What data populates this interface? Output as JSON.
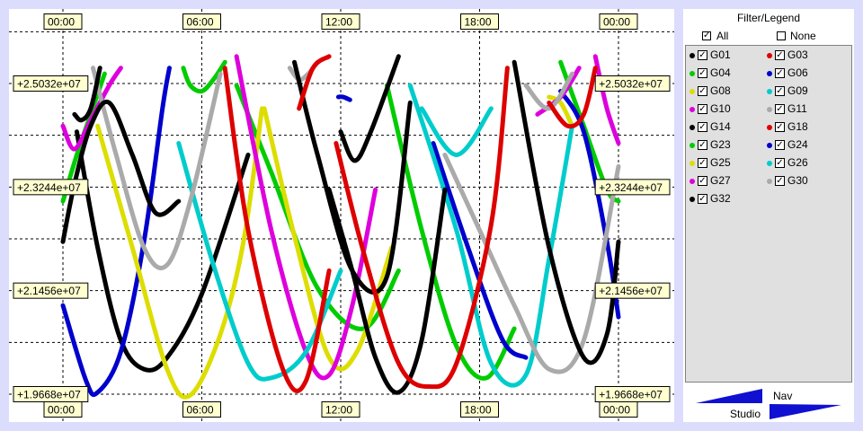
{
  "chart_data": {
    "type": "line",
    "x_tick_labels": [
      "00:00",
      "06:00",
      "12:00",
      "18:00",
      "00:00"
    ],
    "x_range_hours": [
      0,
      24
    ],
    "y_tick_labels": [
      "+2.5032e+07",
      "+2.3244e+07",
      "+2.1456e+07",
      "+1.9668e+07"
    ],
    "ylim": [
      19668000,
      25032000
    ],
    "grid": true,
    "series": [
      {
        "name": "G01",
        "color": "#000000",
        "x": [
          0.6,
          1.5,
          2.5,
          3.5,
          4.5,
          6.0,
          8.0
        ],
        "y": [
          24200000,
          22200000,
          20600000,
          20100000,
          20300000,
          21400000,
          23800000
        ]
      },
      {
        "name": "G04",
        "color": "#00cc00",
        "x": [
          0.0,
          0.6,
          1.2,
          1.8
        ],
        "y": [
          23000000,
          23800000,
          24500000,
          25200000
        ]
      },
      {
        "name": "G04",
        "color": "#00cc00",
        "x": [
          7.5,
          9.0,
          11.0,
          13.0,
          14.5
        ],
        "y": [
          25000000,
          23500000,
          21500000,
          20800000,
          21800000
        ]
      },
      {
        "name": "G23",
        "color": "#00cc00",
        "x": [
          5.2,
          5.5,
          6.0,
          6.5,
          7.0
        ],
        "y": [
          25300000,
          25000000,
          24900000,
          25100000,
          25400000
        ]
      },
      {
        "name": "G23",
        "color": "#00cc00",
        "x": [
          14.0,
          15.5,
          17.0,
          18.3,
          19.5
        ],
        "y": [
          25000000,
          22500000,
          20500000,
          19950000,
          20800000
        ]
      },
      {
        "name": "G23",
        "color": "#00cc00",
        "x": [
          21.5,
          22.5,
          23.5,
          24.0
        ],
        "y": [
          25400000,
          24300000,
          23200000,
          23000000
        ]
      },
      {
        "name": "G24",
        "color": "#0000cc",
        "x": [
          0.0,
          1.0,
          1.5,
          2.5,
          3.5,
          4.3,
          4.6
        ],
        "y": [
          21200000,
          19900000,
          19700000,
          20400000,
          22300000,
          24600000,
          25300000
        ]
      },
      {
        "name": "G06",
        "color": "#0000cc",
        "x": [
          11.9,
          12.1,
          12.4
        ],
        "y": [
          24800000,
          24800000,
          24750000
        ]
      },
      {
        "name": "G06",
        "color": "#0000cc",
        "x": [
          16.0,
          17.5,
          19.0,
          20.0
        ],
        "y": [
          24000000,
          22200000,
          20600000,
          20300000
        ]
      },
      {
        "name": "G06",
        "color": "#0000cc",
        "x": [
          21.5,
          22.5,
          23.5,
          24.0
        ],
        "y": [
          24900000,
          24200000,
          22300000,
          21000000
        ]
      },
      {
        "name": "G08",
        "color": "#dddd00",
        "x": [
          1.5,
          3.0,
          4.5,
          5.5,
          6.8,
          7.8,
          8.6
        ],
        "y": [
          24300000,
          22200000,
          20100000,
          19650000,
          20700000,
          22300000,
          24600000
        ]
      },
      {
        "name": "G25",
        "color": "#dddd00",
        "x": [
          8.7,
          10.0,
          11.5,
          12.7,
          14.2
        ],
        "y": [
          24600000,
          22400000,
          20300000,
          20400000,
          22200000
        ]
      },
      {
        "name": "G25",
        "color": "#dddd00",
        "x": [
          21.0,
          21.5,
          22.0
        ],
        "y": [
          24800000,
          24700000,
          24300000
        ]
      },
      {
        "name": "G10",
        "color": "#dd00dd",
        "x": [
          0.0,
          0.5,
          1.2,
          2.0,
          2.5
        ],
        "y": [
          24300000,
          23900000,
          24400000,
          25000000,
          25300000
        ]
      },
      {
        "name": "G27",
        "color": "#dd00dd",
        "x": [
          7.5,
          9.0,
          10.5,
          11.5,
          12.5,
          13.5
        ],
        "y": [
          25500000,
          22500000,
          20400000,
          20000000,
          21200000,
          23200000
        ]
      },
      {
        "name": "G10",
        "color": "#dd00dd",
        "x": [
          20.5,
          21.5,
          22.3
        ],
        "y": [
          24500000,
          24800000,
          25300000
        ]
      },
      {
        "name": "G10",
        "color": "#dd00dd",
        "x": [
          23.0,
          23.5,
          24.0
        ],
        "y": [
          25500000,
          24600000,
          24000000
        ]
      },
      {
        "name": "G09",
        "color": "#00cccc",
        "x": [
          5.0,
          6.5,
          8.0,
          9.0,
          10.5,
          12.0
        ],
        "y": [
          24000000,
          21900000,
          20200000,
          19950000,
          20400000,
          21800000
        ]
      },
      {
        "name": "G26",
        "color": "#00cccc",
        "x": [
          15.0,
          17.0,
          18.5,
          20.0,
          21.0,
          22.0
        ],
        "y": [
          25000000,
          22500000,
          20200000,
          20000000,
          22000000,
          24300000
        ]
      },
      {
        "name": "G26",
        "color": "#00cccc",
        "x": [
          15.5,
          17.0,
          18.5
        ],
        "y": [
          24600000,
          23800000,
          24600000
        ]
      },
      {
        "name": "G11",
        "color": "#aaaaaa",
        "x": [
          1.3,
          2.3,
          3.5,
          4.5,
          5.5,
          6.8
        ],
        "y": [
          25300000,
          23800000,
          22200000,
          21900000,
          23000000,
          25200000
        ]
      },
      {
        "name": "G30",
        "color": "#aaaaaa",
        "x": [
          9.8,
          10.2,
          10.6,
          11.0
        ],
        "y": [
          25300000,
          25100000,
          25200000,
          25400000
        ]
      },
      {
        "name": "G30",
        "color": "#aaaaaa",
        "x": [
          16.5,
          18.0,
          19.5,
          21.0,
          22.5,
          24.0
        ],
        "y": [
          23800000,
          22500000,
          21200000,
          20100000,
          20600000,
          23600000
        ]
      },
      {
        "name": "G11",
        "color": "#aaaaaa",
        "x": [
          20.0,
          21.0,
          22.0
        ],
        "y": [
          25000000,
          24600000,
          25200000
        ]
      },
      {
        "name": "G14",
        "color": "#000000",
        "x": [
          0.5,
          0.8,
          1.2,
          1.6
        ],
        "y": [
          24500000,
          24400000,
          24600000,
          25300000
        ]
      },
      {
        "name": "G14",
        "color": "#000000",
        "x": [
          0.0,
          0.5,
          1.2,
          2.0,
          3.0,
          4.0,
          5.0
        ],
        "y": [
          22300000,
          23300000,
          24300000,
          24700000,
          23800000,
          22800000,
          23000000
        ]
      },
      {
        "name": "G14",
        "color": "#000000",
        "x": [
          10.0,
          11.0,
          12.5,
          14.0,
          15.0
        ],
        "y": [
          25400000,
          23800000,
          21800000,
          21700000,
          24700000
        ]
      },
      {
        "name": "G14",
        "color": "#000000",
        "x": [
          12.0,
          12.6,
          13.3,
          14.5
        ],
        "y": [
          24200000,
          23700000,
          24200000,
          25500000
        ]
      },
      {
        "name": "G32",
        "color": "#000000",
        "x": [
          11.5,
          12.5,
          13.5,
          14.5,
          15.5,
          16.5
        ],
        "y": [
          23200000,
          21800000,
          20300000,
          19700000,
          20600000,
          23200000
        ]
      },
      {
        "name": "G32",
        "color": "#000000",
        "x": [
          19.5,
          21.0,
          22.5,
          23.5,
          24.0
        ],
        "y": [
          25400000,
          22200000,
          20300000,
          20700000,
          22300000
        ]
      },
      {
        "name": "G03",
        "color": "#dd0000",
        "x": [
          7.0,
          8.0,
          9.5,
          10.5,
          11.5
        ],
        "y": [
          25300000,
          22500000,
          20100000,
          19900000,
          21800000
        ]
      },
      {
        "name": "G18",
        "color": "#dd0000",
        "x": [
          11.8,
          13.0,
          14.5,
          15.8,
          17.0,
          18.5,
          19.2
        ],
        "y": [
          24000000,
          22100000,
          20200000,
          19800000,
          20200000,
          22600000,
          25300000
        ]
      },
      {
        "name": "G18",
        "color": "#dd0000",
        "x": [
          21.0,
          21.8,
          22.5,
          23.0
        ],
        "y": [
          24700000,
          24300000,
          24500000,
          25300000
        ]
      },
      {
        "name": "G03",
        "color": "#dd0000",
        "x": [
          10.2,
          10.8,
          11.5
        ],
        "y": [
          24600000,
          25300000,
          25500000
        ]
      }
    ]
  },
  "legend": {
    "title": "Filter/Legend",
    "all_label": "All",
    "none_label": "None",
    "check_glyph": "✓",
    "items": [
      {
        "label": "G01",
        "color": "#000000"
      },
      {
        "label": "G03",
        "color": "#dd0000"
      },
      {
        "label": "G04",
        "color": "#00cc00"
      },
      {
        "label": "G06",
        "color": "#0000cc"
      },
      {
        "label": "G08",
        "color": "#dddd00"
      },
      {
        "label": "G09",
        "color": "#00cccc"
      },
      {
        "label": "G10",
        "color": "#dd00dd"
      },
      {
        "label": "G11",
        "color": "#aaaaaa"
      },
      {
        "label": "G14",
        "color": "#000000"
      },
      {
        "label": "G18",
        "color": "#dd0000"
      },
      {
        "label": "G23",
        "color": "#00cc00"
      },
      {
        "label": "G24",
        "color": "#0000cc"
      },
      {
        "label": "G25",
        "color": "#dddd00"
      },
      {
        "label": "G26",
        "color": "#00cccc"
      },
      {
        "label": "G27",
        "color": "#dd00dd"
      },
      {
        "label": "G30",
        "color": "#aaaaaa"
      },
      {
        "label": "G32",
        "color": "#000000"
      }
    ]
  },
  "nav": {
    "nav_label": "Nav",
    "studio_label": "Studio"
  },
  "colors": {
    "background": "#dcdcfc",
    "tag_fill": "#ffffd0",
    "nav_arrow": "#1010d0"
  }
}
